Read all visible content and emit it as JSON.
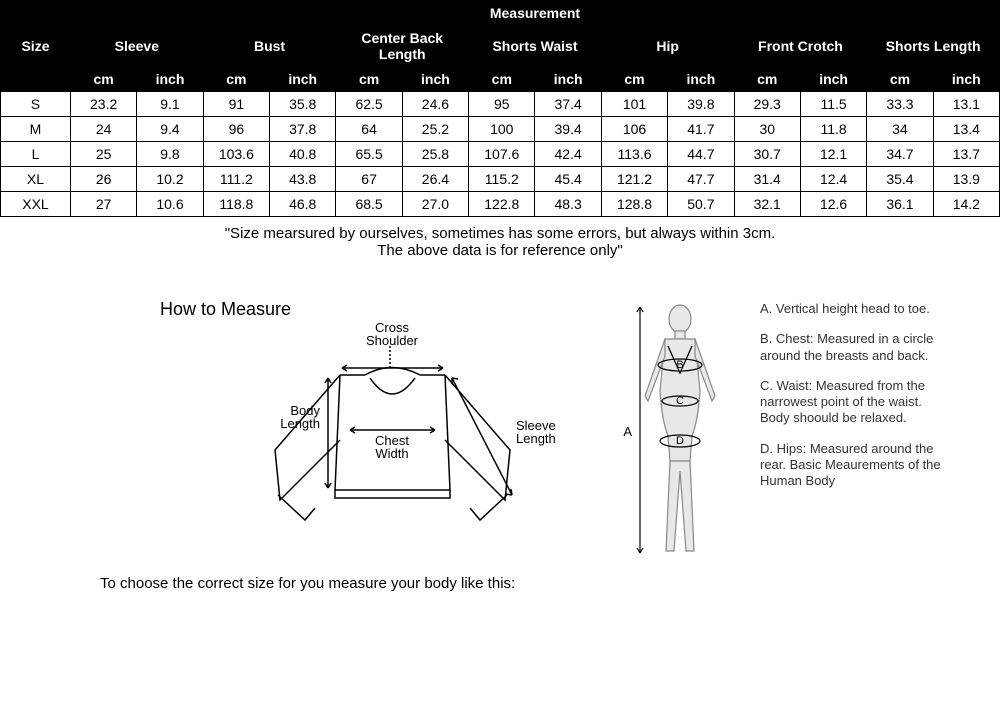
{
  "table": {
    "header": {
      "size": "Size",
      "measurement": "Measurement",
      "groups": [
        "Sleeve",
        "Bust",
        "Center Back Length",
        "Shorts Waist",
        "Hip",
        "Front Crotch",
        "Shorts Length"
      ],
      "units": [
        "cm",
        "inch"
      ]
    },
    "rows": [
      {
        "size": "S",
        "vals": [
          "23.2",
          "9.1",
          "91",
          "35.8",
          "62.5",
          "24.6",
          "95",
          "37.4",
          "101",
          "39.8",
          "29.3",
          "11.5",
          "33.3",
          "13.1"
        ]
      },
      {
        "size": "M",
        "vals": [
          "24",
          "9.4",
          "96",
          "37.8",
          "64",
          "25.2",
          "100",
          "39.4",
          "106",
          "41.7",
          "30",
          "11.8",
          "34",
          "13.4"
        ]
      },
      {
        "size": "L",
        "vals": [
          "25",
          "9.8",
          "103.6",
          "40.8",
          "65.5",
          "25.8",
          "107.6",
          "42.4",
          "113.6",
          "44.7",
          "30.7",
          "12.1",
          "34.7",
          "13.7"
        ]
      },
      {
        "size": "XL",
        "vals": [
          "26",
          "10.2",
          "111.2",
          "43.8",
          "67",
          "26.4",
          "115.2",
          "45.4",
          "121.2",
          "47.7",
          "31.4",
          "12.4",
          "35.4",
          "13.9"
        ]
      },
      {
        "size": "XXL",
        "vals": [
          "27",
          "10.6",
          "118.8",
          "46.8",
          "68.5",
          "27.0",
          "122.8",
          "48.3",
          "128.8",
          "50.7",
          "32.1",
          "12.6",
          "36.1",
          "14.2"
        ]
      }
    ],
    "colors": {
      "header_bg": "#000000",
      "header_fg": "#ffffff",
      "cell_bg": "#ffffff",
      "cell_fg": "#000000",
      "border": "#000000"
    }
  },
  "note": {
    "line1": "\"Size mearsured by ourselves, sometimes has some errors, but always within 3cm.",
    "line2": "The above data is for reference only\""
  },
  "how": {
    "title": "How to Measure",
    "choose_text": "To choose the correct size for you measure your body like this:",
    "garment_labels": {
      "cross_shoulder": "Cross Shoulder",
      "body_length": "Body Length",
      "chest_width": "Chest Width",
      "sleeve_length": "Sleeve Length"
    },
    "body_labels": {
      "A": "A",
      "B": "B",
      "C": "C",
      "D": "D"
    },
    "descriptions": {
      "A": "A. Vertical height head to toe.",
      "B": "B. Chest: Measured in a circle around the breasts and back.",
      "C": "C. Waist: Measured from the narrowest point of the waist. Body shoould be relaxed.",
      "D": "D. Hips: Measured around the rear. Basic Meaurements of the Human Body"
    }
  }
}
